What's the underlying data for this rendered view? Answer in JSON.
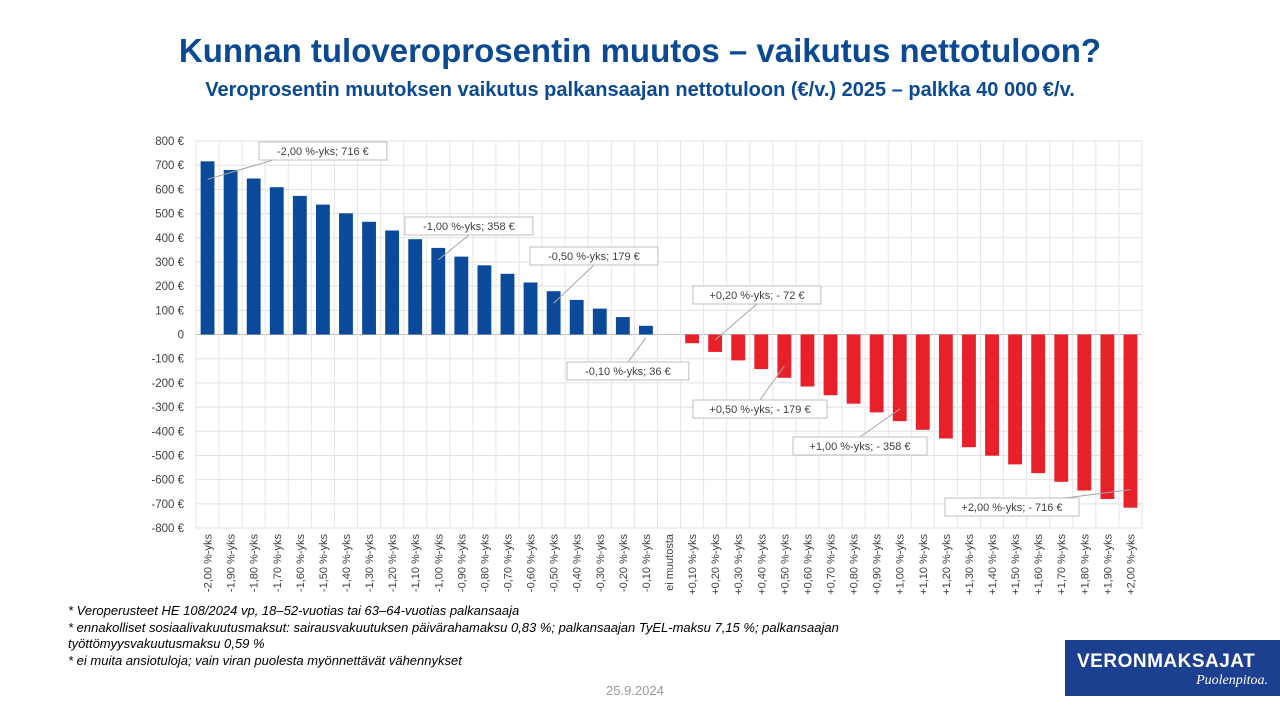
{
  "header": {
    "title": "Kunnan tuloveroprosentin muutos – vaikutus nettotuloon?",
    "subtitle": "Veroprosentin muutoksen vaikutus palkansaajan nettotuloon (€/v.) 2025 – palkka 40 000 €/v."
  },
  "chart_data": {
    "type": "bar",
    "categories": [
      "-2,00 %-yks",
      "-1,90 %-yks",
      "-1,80 %-yks",
      "-1,70 %-yks",
      "-1,60 %-yks",
      "-1,50 %-yks",
      "-1,40 %-yks",
      "-1,30 %-yks",
      "-1,20 %-yks",
      "-1,10 %-yks",
      "-1,00 %-yks",
      "-0,90 %-yks",
      "-0,80 %-yks",
      "-0,70 %-yks",
      "-0,60 %-yks",
      "-0,50 %-yks",
      "-0,40 %-yks",
      "-0,30 %-yks",
      "-0,20 %-yks",
      "-0,10 %-yks",
      "ei muutosta",
      "+0,10 %-yks",
      "+0,20 %-yks",
      "+0,30 %-yks",
      "+0,40 %-yks",
      "+0,50 %-yks",
      "+0,60 %-yks",
      "+0,70 %-yks",
      "+0,80 %-yks",
      "+0,90 %-yks",
      "+1,00 %-yks",
      "+1,10 %-yks",
      "+1,20 %-yks",
      "+1,30 %-yks",
      "+1,40 %-yks",
      "+1,50 %-yks",
      "+1,60 %-yks",
      "+1,70 %-yks",
      "+1,80 %-yks",
      "+1,90 %-yks",
      "+2,00 %-yks"
    ],
    "values": [
      716,
      680,
      645,
      609,
      573,
      537,
      501,
      466,
      430,
      394,
      358,
      322,
      286,
      251,
      215,
      179,
      143,
      107,
      72,
      36,
      0,
      -36,
      -72,
      -107,
      -143,
      -179,
      -215,
      -251,
      -286,
      -322,
      -358,
      -394,
      -430,
      -466,
      -501,
      -537,
      -573,
      -609,
      -645,
      -680,
      -716
    ],
    "colors": {
      "positive": "#0b4a9b",
      "negative": "#e8202a"
    },
    "ylim": [
      -800,
      800
    ],
    "y_ticks": [
      "800 €",
      "700 €",
      "600 €",
      "500 €",
      "400 €",
      "300 €",
      "200 €",
      "100 €",
      "0",
      "-100 €",
      "-200 €",
      "-300 €",
      "-400 €",
      "-500 €",
      "-600 €",
      "-700 €",
      "-800 €"
    ],
    "grid": true,
    "annotations": [
      {
        "index": 0,
        "text": "-2,00 %-yks;  716 €"
      },
      {
        "index": 10,
        "text": "-1,00 %-yks;  358 €"
      },
      {
        "index": 15,
        "text": "-0,50 %-yks;  179 €"
      },
      {
        "index": 19,
        "text": "-0,10 %-yks;  36 €"
      },
      {
        "index": 22,
        "text": "+0,20 %-yks; - 72 €"
      },
      {
        "index": 25,
        "text": "+0,50 %-yks; - 179 €"
      },
      {
        "index": 30,
        "text": "+1,00 %-yks; - 358 €"
      },
      {
        "index": 40,
        "text": "+2,00 %-yks; - 716 €"
      }
    ]
  },
  "footnotes": [
    "* Veroperusteet HE 108/2024 vp, 18–52-vuotias tai 63–64-vuotias palkansaaja",
    "* ennakolliset sosiaalivakuutusmaksut: sairausvakuutuksen päivärahamaksu 0,83 %; palkansaajan TyEL-maksu 7,15 %; palkansaajan työttömyysvakuutusmaksu 0,59 %",
    "* ei muita ansiotuloja; vain viran puolesta myönnettävät vähennykset"
  ],
  "date": "25.9.2024",
  "logo": {
    "main": "VERONMAKSAJAT",
    "sub": "Puolenpitoa."
  }
}
